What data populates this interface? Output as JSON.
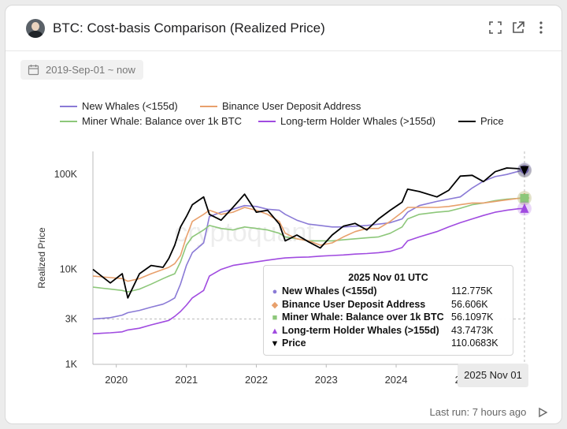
{
  "header": {
    "title": "BTC: Cost-basis Comparison (Realized Price)"
  },
  "filter": {
    "date_range": "2019-Sep-01 ~ now"
  },
  "footer": {
    "last_run": "Last run: 7 hours ago"
  },
  "watermark": "cryptoquant",
  "icons": [
    "avatar",
    "expand-icon",
    "open-external-icon",
    "more-vertical-icon",
    "calendar-icon",
    "play-icon"
  ],
  "colors": {
    "new_whales": "#8a7ad6",
    "binance": "#e8a06c",
    "miner": "#8dc77a",
    "lth": "#a04be0",
    "price": "#000000"
  },
  "chart_data": {
    "type": "line",
    "ylabel": "Realized Price",
    "yscale": "log",
    "ylim": [
      1000,
      150000
    ],
    "yticks": [
      "1K",
      "3K",
      "10K",
      "100K"
    ],
    "xticks": [
      "2020",
      "2021",
      "2022",
      "2023",
      "2024",
      "2025"
    ],
    "x": [
      "2019-09",
      "2019-12",
      "2020-02",
      "2020-03",
      "2020-05",
      "2020-07",
      "2020-09",
      "2020-10",
      "2020-11",
      "2020-12",
      "2021-01",
      "2021-02",
      "2021-04",
      "2021-05",
      "2021-07",
      "2021-09",
      "2021-11",
      "2022-01",
      "2022-03",
      "2022-05",
      "2022-06",
      "2022-08",
      "2022-10",
      "2022-12",
      "2023-02",
      "2023-04",
      "2023-06",
      "2023-08",
      "2023-10",
      "2023-12",
      "2024-02",
      "2024-03",
      "2024-05",
      "2024-08",
      "2024-10",
      "2024-12",
      "2025-02",
      "2025-04",
      "2025-06",
      "2025-08",
      "2025-10",
      "2025-11"
    ],
    "series": [
      {
        "name": "New Whales (<155d)",
        "color": "#8a7ad6",
        "values": [
          3000,
          3100,
          3300,
          3500,
          3700,
          4000,
          4300,
          4600,
          5000,
          7000,
          11000,
          15000,
          19000,
          36000,
          40000,
          43000,
          47000,
          46000,
          43000,
          42000,
          38000,
          33000,
          30000,
          29000,
          28000,
          28000,
          28500,
          29000,
          30000,
          31000,
          34000,
          40000,
          47000,
          52000,
          55000,
          58000,
          72000,
          85000,
          95000,
          100000,
          108000,
          112775
        ]
      },
      {
        "name": "Binance User Deposit Address",
        "color": "#e8a06c",
        "values": [
          8500,
          8200,
          8000,
          7500,
          8000,
          9000,
          10000,
          10500,
          11500,
          14000,
          22000,
          32000,
          38000,
          42000,
          38000,
          40000,
          45000,
          42000,
          38000,
          32000,
          24000,
          21000,
          20000,
          18000,
          19000,
          22000,
          25000,
          27000,
          27000,
          32000,
          40000,
          45000,
          45000,
          45000,
          46000,
          48000,
          50000,
          50000,
          52000,
          54000,
          56000,
          56606
        ]
      },
      {
        "name": "Miner Whale: Balance over 1k BTC",
        "color": "#8dc77a",
        "values": [
          6500,
          6200,
          6000,
          5800,
          6200,
          7000,
          8000,
          8500,
          9000,
          12000,
          18000,
          22000,
          26000,
          29000,
          27000,
          26000,
          28000,
          27000,
          26000,
          24000,
          22000,
          21000,
          20000,
          20000,
          20000,
          20500,
          21000,
          21500,
          22000,
          24000,
          28000,
          34000,
          38000,
          40000,
          41000,
          44000,
          48000,
          50000,
          53000,
          55000,
          56000,
          56110
        ]
      },
      {
        "name": "Long-term Holder Whales (>155d)",
        "color": "#a04be0",
        "values": [
          2100,
          2150,
          2200,
          2300,
          2400,
          2600,
          2800,
          2900,
          3200,
          3600,
          4200,
          5000,
          6000,
          8500,
          10000,
          11000,
          11500,
          12000,
          12500,
          13000,
          13200,
          13400,
          13500,
          13800,
          14000,
          14200,
          14500,
          14700,
          15000,
          15500,
          17000,
          20000,
          22000,
          25000,
          28000,
          31000,
          34000,
          37000,
          40000,
          42000,
          43500,
          43747
        ]
      },
      {
        "name": "Price",
        "color": "#000000",
        "values": [
          10000,
          7200,
          9000,
          5000,
          9000,
          11000,
          10500,
          13000,
          18000,
          28000,
          36000,
          48000,
          58000,
          38000,
          33000,
          45000,
          62000,
          40000,
          42000,
          30000,
          20000,
          23000,
          19500,
          16800,
          23000,
          28500,
          30500,
          26000,
          34000,
          42000,
          51000,
          70000,
          66000,
          58000,
          68000,
          96000,
          98000,
          84000,
          107000,
          117000,
          115000,
          110068
        ]
      }
    ],
    "tooltip": {
      "date": "2025 Nov 01 UTC",
      "axis_date": "2025 Nov 01",
      "rows": [
        {
          "name": "New Whales (<155d)",
          "value": "112.775K",
          "color": "#8a7ad6",
          "marker": "●"
        },
        {
          "name": "Binance User Deposit Address",
          "value": "56.606K",
          "color": "#e8a06c",
          "marker": "◆"
        },
        {
          "name": "Miner Whale: Balance over 1k BTC",
          "value": "56.1097K",
          "color": "#8dc77a",
          "marker": "■"
        },
        {
          "name": "Long-term Holder Whales (>155d)",
          "value": "43.7473K",
          "color": "#a04be0",
          "marker": "▲"
        },
        {
          "name": "Price",
          "value": "110.0683K",
          "color": "#000000",
          "marker": "▼"
        }
      ]
    }
  }
}
